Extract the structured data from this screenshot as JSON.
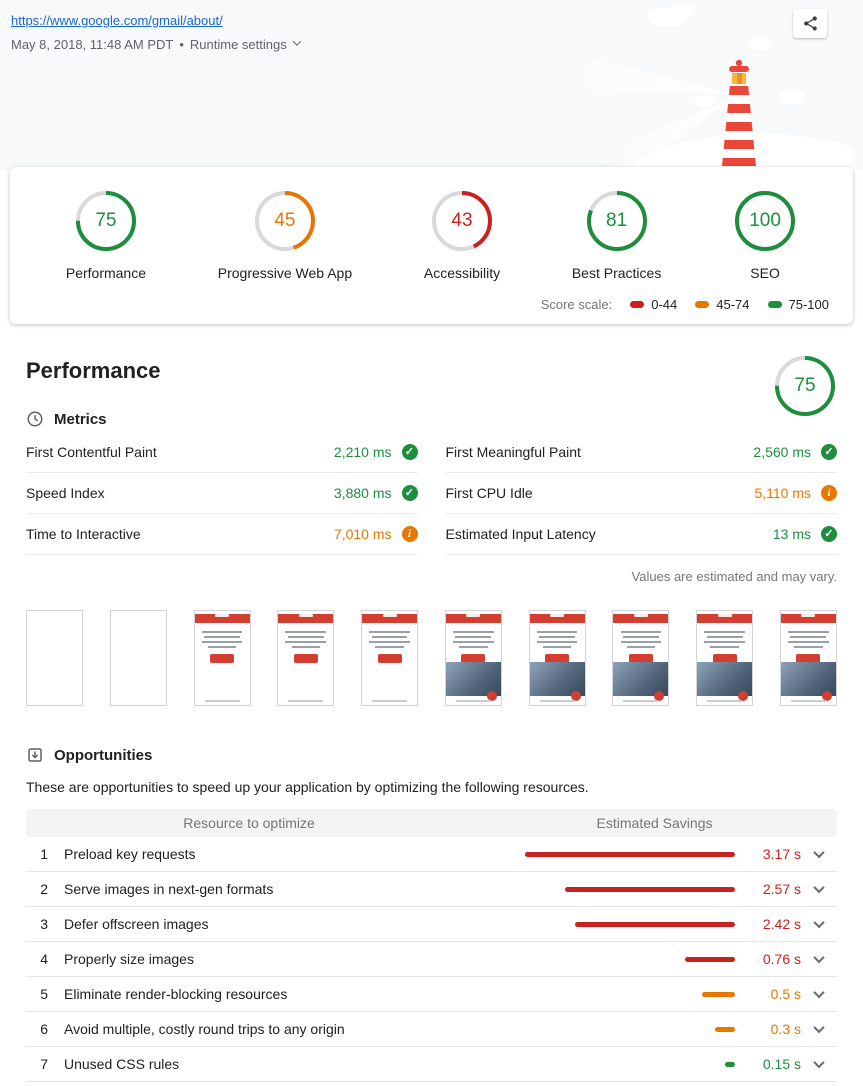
{
  "colors": {
    "pass": "#1e8e3e",
    "average": "#e67700",
    "fail": "#c7221f",
    "link": "#1967d2",
    "brand_red": "#d23f31"
  },
  "icons": {
    "share": "share",
    "runtime_toggle": "chevron-down",
    "metrics": "timer",
    "opportunities": "box-arrow",
    "expand_row": "chevron-down",
    "pass_status": "check-circle",
    "average_status": "info-circle"
  },
  "header": {
    "url": "https://www.google.com/gmail/about/",
    "date": "May 8, 2018, 11:48 AM PDT",
    "separator": "•",
    "runtime_settings": "Runtime settings"
  },
  "scores": {
    "items": [
      {
        "label": "Performance",
        "score": 75,
        "level": "pass"
      },
      {
        "label": "Progressive Web App",
        "score": 45,
        "level": "average"
      },
      {
        "label": "Accessibility",
        "score": 43,
        "level": "fail"
      },
      {
        "label": "Best Practices",
        "score": 81,
        "level": "pass"
      },
      {
        "label": "SEO",
        "score": 100,
        "level": "pass"
      }
    ],
    "scale_label": "Score scale:",
    "scale": [
      {
        "label": "0-44",
        "level": "fail"
      },
      {
        "label": "45-74",
        "level": "average"
      },
      {
        "label": "75-100",
        "level": "pass"
      }
    ]
  },
  "performance": {
    "title": "Performance",
    "score": 75,
    "level": "pass",
    "metrics_title": "Metrics",
    "metrics": [
      {
        "label": "First Contentful Paint",
        "value": "2,210 ms",
        "status": "pass"
      },
      {
        "label": "First Meaningful Paint",
        "value": "2,560 ms",
        "status": "pass"
      },
      {
        "label": "Speed Index",
        "value": "3,880 ms",
        "status": "pass"
      },
      {
        "label": "First CPU Idle",
        "value": "5,110 ms",
        "status": "average"
      },
      {
        "label": "Time to Interactive",
        "value": "7,010 ms",
        "status": "average"
      },
      {
        "label": "Estimated Input Latency",
        "value": "13 ms",
        "status": "pass"
      }
    ],
    "disclaimer": "Values are estimated and may vary.",
    "filmstrip": [
      "blank",
      "blank",
      "text",
      "text",
      "text",
      "full",
      "full",
      "full",
      "full",
      "full"
    ]
  },
  "opportunities": {
    "title": "Opportunities",
    "description": "These are opportunities to speed up your application by optimizing the following resources.",
    "table": {
      "col1": "Resource to optimize",
      "col2": "Estimated Savings",
      "rows": [
        {
          "index": 1,
          "label": "Preload key requests",
          "savings": "3.17 s",
          "seconds": 3.17,
          "level": "fail"
        },
        {
          "index": 2,
          "label": "Serve images in next-gen formats",
          "savings": "2.57 s",
          "seconds": 2.57,
          "level": "fail"
        },
        {
          "index": 3,
          "label": "Defer offscreen images",
          "savings": "2.42 s",
          "seconds": 2.42,
          "level": "fail"
        },
        {
          "index": 4,
          "label": "Properly size images",
          "savings": "0.76 s",
          "seconds": 0.76,
          "level": "fail"
        },
        {
          "index": 5,
          "label": "Eliminate render-blocking resources",
          "savings": "0.5 s",
          "seconds": 0.5,
          "level": "average"
        },
        {
          "index": 6,
          "label": "Avoid multiple, costly round trips to any origin",
          "savings": "0.3 s",
          "seconds": 0.3,
          "level": "average"
        },
        {
          "index": 7,
          "label": "Unused CSS rules",
          "savings": "0.15 s",
          "seconds": 0.15,
          "level": "pass"
        }
      ]
    }
  }
}
